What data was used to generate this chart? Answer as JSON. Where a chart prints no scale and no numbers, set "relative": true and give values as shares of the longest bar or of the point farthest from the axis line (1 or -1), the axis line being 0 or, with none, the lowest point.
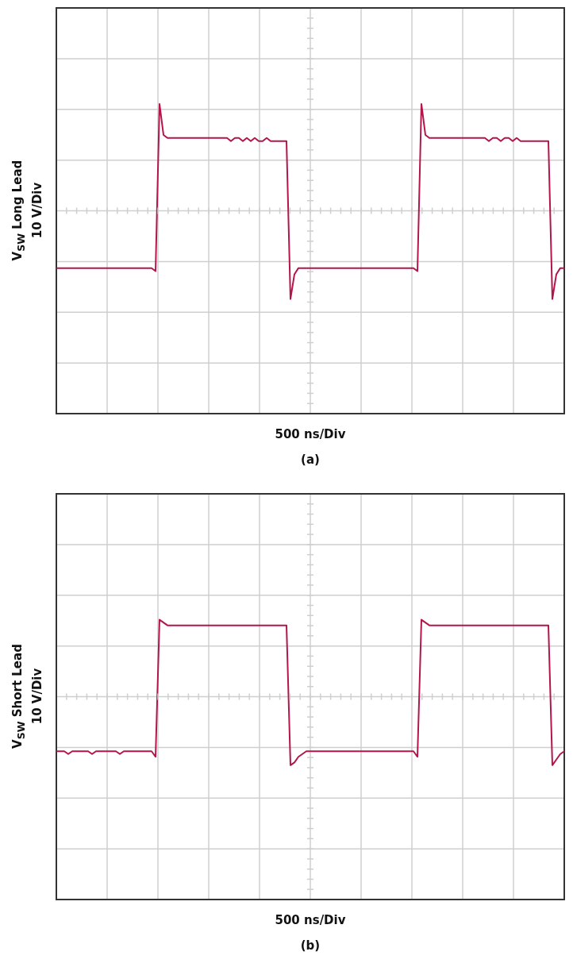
{
  "chart_data": [
    {
      "type": "line",
      "title": "(a)",
      "xlabel": "500 ns/Div",
      "ylabel": "V$_{SW}$ Long Lead 10 V/Div",
      "relative": true,
      "grid": true,
      "tick_labels": false,
      "categories": [
        null,
        null,
        null,
        null,
        null,
        null,
        null,
        null,
        null,
        null,
        null,
        null,
        null,
        null,
        null,
        null,
        null,
        null,
        null,
        null,
        null,
        null,
        null,
        null,
        null,
        null,
        null,
        null,
        null,
        null,
        null,
        null,
        null,
        null,
        null,
        null,
        null,
        null,
        null,
        null,
        null,
        null,
        null,
        null,
        null,
        null,
        null,
        null,
        null,
        null,
        null,
        null,
        null,
        null,
        null,
        null,
        null,
        null,
        null,
        null,
        null,
        null,
        null,
        null,
        null,
        null,
        null,
        null,
        null,
        null,
        null,
        null,
        null,
        null,
        null,
        null,
        null,
        null,
        null,
        null,
        null,
        null,
        null,
        null,
        null,
        null,
        null,
        null,
        null,
        null,
        null,
        null,
        null,
        null,
        null,
        null,
        null,
        null,
        null,
        null,
        null,
        null,
        null,
        null,
        null,
        null,
        null,
        null,
        null,
        null,
        null,
        null,
        null,
        null,
        null,
        null,
        null,
        null,
        null,
        null,
        null,
        null,
        null,
        null,
        null,
        null,
        null,
        null,
        null
      ],
      "series": [
        {
          "color": "#b3174a",
          "values": [
            0.47,
            0.47,
            0.47,
            0.47,
            0.47,
            0.47,
            0.47,
            0.47,
            0.47,
            0.47,
            0.47,
            0.47,
            0.47,
            0.47,
            0.47,
            0.47,
            0.47,
            0.47,
            0.47,
            0.47,
            0.47,
            0.47,
            0.47,
            0.47,
            0.47,
            0.46,
            1.0,
            0.9,
            0.89,
            0.89,
            0.89,
            0.89,
            0.89,
            0.89,
            0.89,
            0.89,
            0.89,
            0.89,
            0.89,
            0.89,
            0.89,
            0.89,
            0.89,
            0.89,
            0.88,
            0.89,
            0.89,
            0.88,
            0.89,
            0.88,
            0.89,
            0.88,
            0.88,
            0.89,
            0.88,
            0.88,
            0.88,
            0.88,
            0.88,
            0.37,
            0.45,
            0.47,
            0.47,
            0.47,
            0.47,
            0.47,
            0.47,
            0.47,
            0.47,
            0.47,
            0.47,
            0.47,
            0.47,
            0.47,
            0.47,
            0.47,
            0.47,
            0.47,
            0.47,
            0.47,
            0.47,
            0.47,
            0.47,
            0.47,
            0.47,
            0.47,
            0.47,
            0.47,
            0.47,
            0.47,
            0.47,
            0.46,
            1.0,
            0.9,
            0.89,
            0.89,
            0.89,
            0.89,
            0.89,
            0.89,
            0.89,
            0.89,
            0.89,
            0.89,
            0.89,
            0.89,
            0.89,
            0.89,
            0.89,
            0.88,
            0.89,
            0.89,
            0.88,
            0.89,
            0.89,
            0.88,
            0.89,
            0.88,
            0.88,
            0.88,
            0.88,
            0.88,
            0.88,
            0.88,
            0.88,
            0.37,
            0.45,
            0.47,
            0.47
          ]
        }
      ]
    },
    {
      "type": "line",
      "title": "(b)",
      "xlabel": "500 ns/Div",
      "ylabel": "V$_{SW}$ Short Lead 10 V/Div",
      "relative": true,
      "grid": true,
      "tick_labels": false,
      "categories": [
        null,
        null,
        null,
        null,
        null,
        null,
        null,
        null,
        null,
        null,
        null,
        null,
        null,
        null,
        null,
        null,
        null,
        null,
        null,
        null,
        null,
        null,
        null,
        null,
        null,
        null,
        null,
        null,
        null,
        null,
        null,
        null,
        null,
        null,
        null,
        null,
        null,
        null,
        null,
        null,
        null,
        null,
        null,
        null,
        null,
        null,
        null,
        null,
        null,
        null,
        null,
        null,
        null,
        null,
        null,
        null,
        null,
        null,
        null,
        null,
        null,
        null,
        null,
        null,
        null,
        null,
        null,
        null,
        null,
        null,
        null,
        null,
        null,
        null,
        null,
        null,
        null,
        null,
        null,
        null,
        null,
        null,
        null,
        null,
        null,
        null,
        null,
        null,
        null,
        null,
        null,
        null,
        null,
        null,
        null,
        null,
        null,
        null,
        null,
        null,
        null,
        null,
        null,
        null,
        null,
        null,
        null,
        null,
        null,
        null,
        null,
        null,
        null,
        null,
        null,
        null,
        null,
        null,
        null,
        null,
        null,
        null,
        null,
        null,
        null,
        null,
        null,
        null,
        null
      ],
      "series": [
        {
          "color": "#b3174a",
          "values": [
            0.53,
            0.53,
            0.53,
            0.52,
            0.53,
            0.53,
            0.53,
            0.53,
            0.53,
            0.52,
            0.53,
            0.53,
            0.53,
            0.53,
            0.53,
            0.53,
            0.52,
            0.53,
            0.53,
            0.53,
            0.53,
            0.53,
            0.53,
            0.53,
            0.53,
            0.51,
            1.0,
            0.99,
            0.98,
            0.98,
            0.98,
            0.98,
            0.98,
            0.98,
            0.98,
            0.98,
            0.98,
            0.98,
            0.98,
            0.98,
            0.98,
            0.98,
            0.98,
            0.98,
            0.98,
            0.98,
            0.98,
            0.98,
            0.98,
            0.98,
            0.98,
            0.98,
            0.98,
            0.98,
            0.98,
            0.98,
            0.98,
            0.98,
            0.98,
            0.48,
            0.49,
            0.51,
            0.52,
            0.53,
            0.53,
            0.53,
            0.53,
            0.53,
            0.53,
            0.53,
            0.53,
            0.53,
            0.53,
            0.53,
            0.53,
            0.53,
            0.53,
            0.53,
            0.53,
            0.53,
            0.53,
            0.53,
            0.53,
            0.53,
            0.53,
            0.53,
            0.53,
            0.53,
            0.53,
            0.53,
            0.53,
            0.51,
            1.0,
            0.99,
            0.98,
            0.98,
            0.98,
            0.98,
            0.98,
            0.98,
            0.98,
            0.98,
            0.98,
            0.98,
            0.98,
            0.98,
            0.98,
            0.98,
            0.98,
            0.98,
            0.98,
            0.98,
            0.98,
            0.98,
            0.98,
            0.98,
            0.98,
            0.98,
            0.98,
            0.98,
            0.98,
            0.98,
            0.98,
            0.98,
            0.98,
            0.48,
            0.5,
            0.52,
            0.53
          ]
        }
      ]
    }
  ]
}
